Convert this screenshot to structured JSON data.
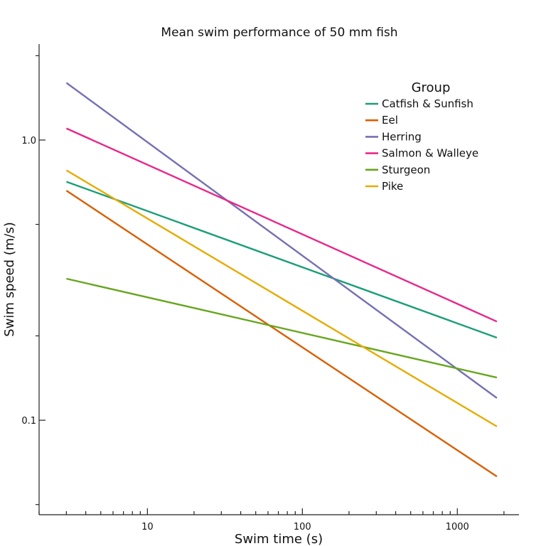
{
  "chart_data": {
    "type": "line",
    "title": "Mean swim performance of 50 mm fish",
    "xlabel": "Swim time (s)",
    "ylabel": "Swim speed (m/s)",
    "xscale": "log",
    "yscale": "log",
    "xlim": [
      2.0,
      2500
    ],
    "ylim": [
      0.046,
      2.2
    ],
    "x_ticks": [
      {
        "value": 10,
        "label": "10"
      },
      {
        "value": 100,
        "label": "100"
      },
      {
        "value": 1000,
        "label": "1000"
      }
    ],
    "y_ticks": [
      {
        "value": 0.1,
        "label": "0.1"
      },
      {
        "value": 1.0,
        "label": "1.0"
      }
    ],
    "legend": {
      "title": "Group",
      "position": "top-right"
    },
    "series": [
      {
        "name": "Catfish & Sunfish",
        "color": "#1b9e77",
        "x": [
          3,
          1800
        ],
        "y": [
          0.71,
          0.197
        ]
      },
      {
        "name": "Eel",
        "color": "#d95f02",
        "x": [
          3,
          1800
        ],
        "y": [
          0.66,
          0.063
        ]
      },
      {
        "name": "Herring",
        "color": "#7570b3",
        "x": [
          3,
          1800
        ],
        "y": [
          1.6,
          0.12
        ]
      },
      {
        "name": "Salmon & Walleye",
        "color": "#e7298a",
        "x": [
          3,
          1800
        ],
        "y": [
          1.1,
          0.225
        ]
      },
      {
        "name": "Sturgeon",
        "color": "#66a61e",
        "x": [
          3,
          1800
        ],
        "y": [
          0.32,
          0.142
        ]
      },
      {
        "name": "Pike",
        "color": "#e6ab02",
        "x": [
          3,
          1800
        ],
        "y": [
          0.78,
          0.095
        ]
      }
    ]
  }
}
